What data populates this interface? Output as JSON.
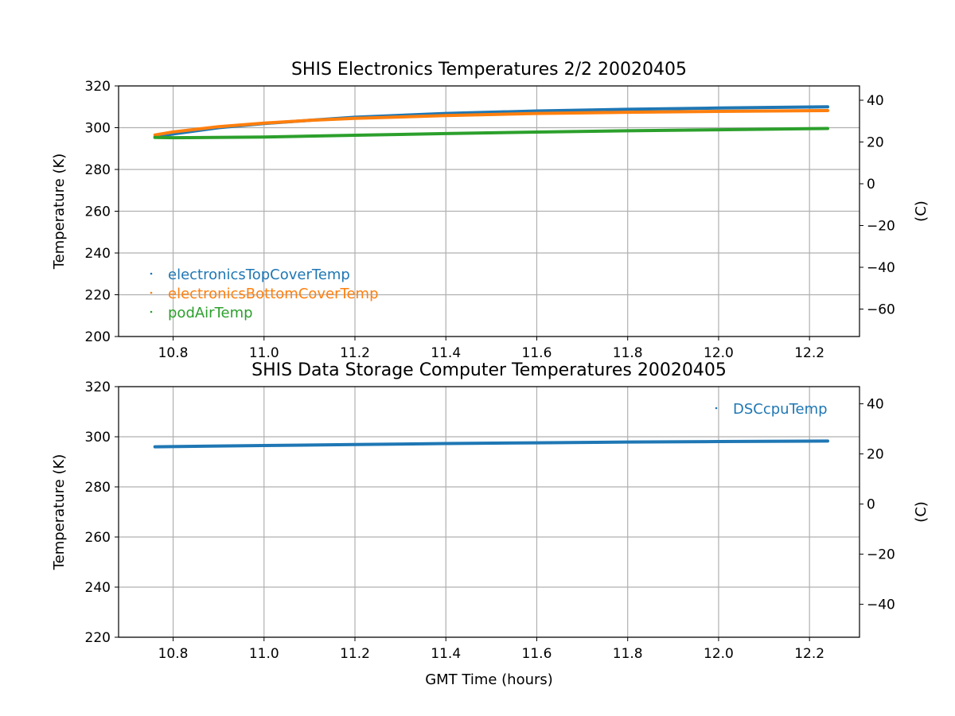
{
  "colors": {
    "blue": "#1f77b4",
    "orange": "#ff7f0e",
    "green": "#2ca02c"
  },
  "chart_data": [
    {
      "type": "line",
      "title": "SHIS Electronics Temperatures 2/2 20020405",
      "xlabel": "",
      "ylabel": "Temperature (K)",
      "ylabel_right": "(C)",
      "xlim": [
        10.68,
        12.31
      ],
      "ylim": [
        200,
        320
      ],
      "ylim_right_c": [
        -73.15,
        46.85
      ],
      "xticks": [
        "10.8",
        "11.0",
        "11.2",
        "11.4",
        "11.6",
        "11.8",
        "12.0",
        "12.2"
      ],
      "yticks": [
        "200",
        "220",
        "240",
        "260",
        "280",
        "300",
        "320"
      ],
      "yticks_right": [
        "−60",
        "−40",
        "−20",
        "0",
        "20",
        "40"
      ],
      "grid": true,
      "legend_position": "lower-left",
      "series": [
        {
          "name": "electronicsTopCoverTemp",
          "color": "#1f77b4",
          "x": [
            10.76,
            10.8,
            10.9,
            11.0,
            11.1,
            11.2,
            11.4,
            11.6,
            11.8,
            12.0,
            12.24
          ],
          "y": [
            295.5,
            297.0,
            300.0,
            302.0,
            303.5,
            305.0,
            306.8,
            308.0,
            308.8,
            309.4,
            310.0
          ]
        },
        {
          "name": "electronicsBottomCoverTemp",
          "color": "#ff7f0e",
          "x": [
            10.76,
            10.8,
            10.9,
            11.0,
            11.1,
            11.2,
            11.4,
            11.6,
            11.8,
            12.0,
            12.24
          ],
          "y": [
            296.5,
            298.0,
            300.5,
            302.2,
            303.5,
            304.5,
            305.8,
            306.8,
            307.4,
            307.8,
            308.2
          ]
        },
        {
          "name": "podAirTemp",
          "color": "#2ca02c",
          "x": [
            10.76,
            10.8,
            11.0,
            11.2,
            11.4,
            11.6,
            11.8,
            12.0,
            12.24
          ],
          "y": [
            295.3,
            295.2,
            295.5,
            296.4,
            297.2,
            297.9,
            298.5,
            299.0,
            299.6
          ]
        }
      ]
    },
    {
      "type": "line",
      "title": "SHIS Data Storage Computer Temperatures 20020405",
      "xlabel": "GMT Time (hours)",
      "ylabel": "Temperature (K)",
      "ylabel_right": "(C)",
      "xlim": [
        10.68,
        12.31
      ],
      "ylim": [
        220,
        320
      ],
      "ylim_right_c": [
        -53.15,
        46.85
      ],
      "xticks": [
        "10.8",
        "11.0",
        "11.2",
        "11.4",
        "11.6",
        "11.8",
        "12.0",
        "12.2"
      ],
      "yticks": [
        "220",
        "240",
        "260",
        "280",
        "300",
        "320"
      ],
      "yticks_right": [
        "−40",
        "−20",
        "0",
        "20",
        "40"
      ],
      "grid": true,
      "legend_position": "top-right",
      "series": [
        {
          "name": "DSCcpuTemp",
          "color": "#1f77b4",
          "x": [
            10.76,
            11.0,
            11.2,
            11.4,
            11.6,
            11.8,
            12.0,
            12.24
          ],
          "y": [
            296.0,
            296.5,
            296.9,
            297.3,
            297.6,
            297.9,
            298.1,
            298.3
          ]
        }
      ]
    }
  ]
}
